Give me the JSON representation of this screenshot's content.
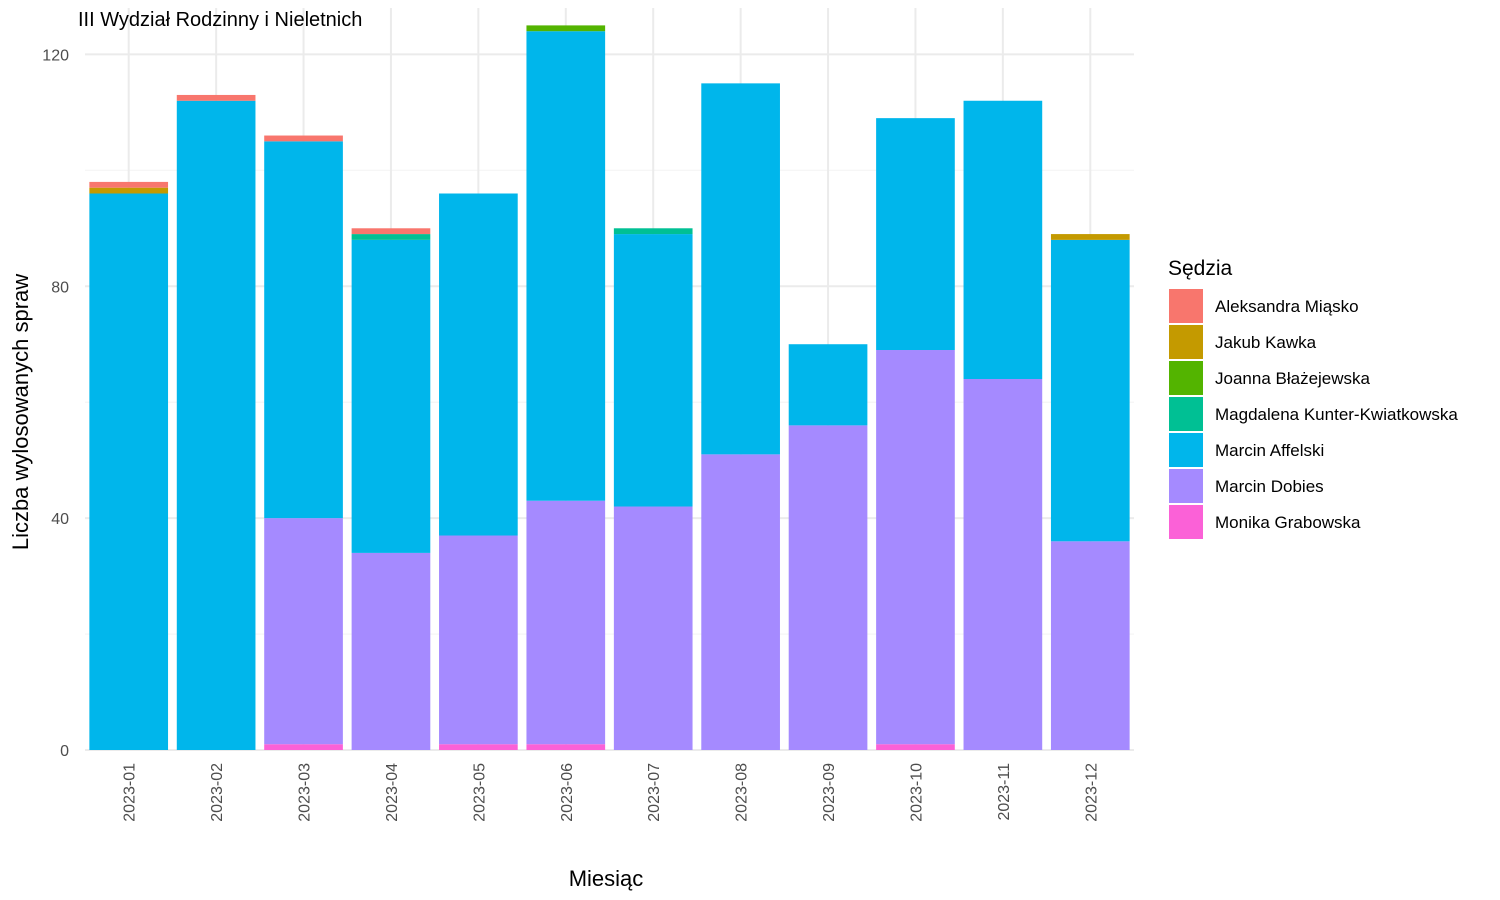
{
  "chart_data": {
    "type": "bar",
    "stacked": true,
    "title": "III Wydział Rodzinny i Nieletnich",
    "xlabel": "Miesiąc",
    "ylabel": "Liczba wylosowanych spraw",
    "ylim": [
      0,
      128
    ],
    "yticks": [
      0,
      40,
      80,
      120
    ],
    "grid": true,
    "legend": {
      "title": "Sędzia",
      "position": "right"
    },
    "categories": [
      "2023-01",
      "2023-02",
      "2023-03",
      "2023-04",
      "2023-05",
      "2023-06",
      "2023-07",
      "2023-08",
      "2023-09",
      "2023-10",
      "2023-11",
      "2023-12"
    ],
    "series": [
      {
        "name": "Aleksandra Miąsko",
        "color": "#F8766D",
        "values": [
          1,
          1,
          1,
          1,
          0,
          0,
          0,
          0,
          0,
          0,
          0,
          0
        ]
      },
      {
        "name": "Jakub Kawka",
        "color": "#C49A00",
        "values": [
          1,
          0,
          0,
          0,
          0,
          0,
          0,
          0,
          0,
          0,
          0,
          1
        ]
      },
      {
        "name": "Joanna Błażejewska",
        "color": "#53B400",
        "values": [
          0,
          0,
          0,
          0,
          0,
          1,
          0,
          0,
          0,
          0,
          0,
          0
        ]
      },
      {
        "name": "Magdalena Kunter-Kwiatkowska",
        "color": "#00C094",
        "values": [
          0,
          0,
          0,
          1,
          0,
          0,
          1,
          0,
          0,
          0,
          0,
          0
        ]
      },
      {
        "name": "Marcin Affelski",
        "color": "#00B6EB",
        "values": [
          96,
          112,
          65,
          54,
          59,
          81,
          47,
          64,
          14,
          40,
          48,
          52
        ]
      },
      {
        "name": "Marcin Dobies",
        "color": "#A58AFF",
        "values": [
          0,
          0,
          39,
          34,
          36,
          42,
          42,
          51,
          56,
          68,
          64,
          36
        ]
      },
      {
        "name": "Monika Grabowska",
        "color": "#FB61D7",
        "values": [
          0,
          0,
          1,
          0,
          1,
          1,
          0,
          0,
          0,
          1,
          0,
          0
        ]
      }
    ]
  }
}
